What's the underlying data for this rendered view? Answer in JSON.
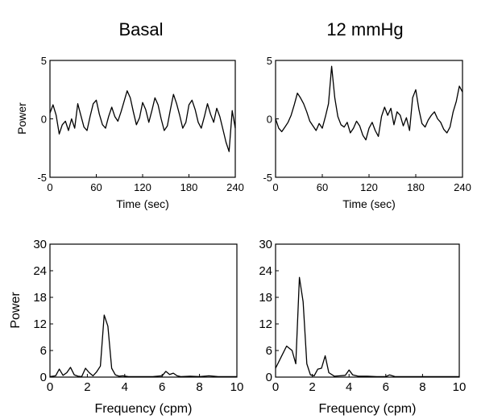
{
  "columns": [
    "Basal",
    "12 mmHg"
  ],
  "chart_data": [
    {
      "type": "line",
      "title": "Basal",
      "xlabel": "Time (sec)",
      "ylabel": "Power",
      "xlim": [
        0,
        240
      ],
      "ylim": [
        -5,
        5
      ],
      "xticks": [
        0,
        60,
        120,
        180,
        240
      ],
      "yticks": [
        -5,
        0,
        5
      ],
      "grid": false,
      "x": [
        0,
        4,
        8,
        12,
        16,
        20,
        24,
        28,
        32,
        36,
        40,
        44,
        48,
        52,
        56,
        60,
        64,
        68,
        72,
        76,
        80,
        84,
        88,
        92,
        96,
        100,
        104,
        108,
        112,
        116,
        120,
        124,
        128,
        132,
        136,
        140,
        144,
        148,
        152,
        156,
        160,
        164,
        168,
        172,
        176,
        180,
        184,
        188,
        192,
        196,
        200,
        204,
        208,
        212,
        216,
        220,
        224,
        228,
        232,
        236,
        240
      ],
      "y": [
        0.5,
        1.2,
        0.3,
        -1.3,
        -0.5,
        -0.2,
        -1.0,
        0.0,
        -0.8,
        1.3,
        0.3,
        -0.7,
        -1.0,
        0.2,
        1.3,
        1.6,
        0.4,
        -0.5,
        -0.8,
        0.2,
        1.0,
        0.2,
        -0.2,
        0.6,
        1.5,
        2.4,
        1.8,
        0.6,
        -0.5,
        0.1,
        1.4,
        0.8,
        -0.3,
        0.7,
        1.8,
        1.2,
        0.0,
        -1.0,
        -0.6,
        0.8,
        2.1,
        1.3,
        0.3,
        -0.8,
        -0.3,
        1.2,
        1.6,
        0.8,
        -0.3,
        -0.8,
        0.2,
        1.3,
        0.4,
        -0.3,
        0.9,
        0.2,
        -0.9,
        -2.0,
        -2.8,
        0.7,
        -0.8
      ]
    },
    {
      "type": "line",
      "title": "12 mmHg",
      "xlabel": "Time (sec)",
      "ylabel": "",
      "xlim": [
        0,
        240
      ],
      "ylim": [
        -5,
        5
      ],
      "xticks": [
        0,
        60,
        120,
        180,
        240
      ],
      "yticks": [
        -5,
        0,
        5
      ],
      "grid": false,
      "x": [
        0,
        4,
        8,
        12,
        16,
        20,
        24,
        28,
        32,
        36,
        40,
        44,
        48,
        52,
        56,
        60,
        64,
        68,
        72,
        76,
        80,
        84,
        88,
        92,
        96,
        100,
        104,
        108,
        112,
        116,
        120,
        124,
        128,
        132,
        136,
        140,
        144,
        148,
        152,
        156,
        160,
        164,
        168,
        172,
        176,
        180,
        184,
        188,
        192,
        196,
        200,
        204,
        208,
        212,
        216,
        220,
        224,
        228,
        232,
        236,
        240
      ],
      "y": [
        0.0,
        -0.8,
        -1.1,
        -0.7,
        -0.3,
        0.3,
        1.2,
        2.2,
        1.8,
        1.3,
        0.6,
        -0.2,
        -0.6,
        -1.0,
        -0.4,
        -0.8,
        0.2,
        1.3,
        4.5,
        1.8,
        0.2,
        -0.5,
        -0.7,
        -0.3,
        -1.2,
        -0.8,
        -0.2,
        -0.6,
        -1.4,
        -1.8,
        -0.8,
        -0.3,
        -1.0,
        -1.5,
        0.2,
        1.0,
        0.3,
        0.9,
        -0.5,
        0.6,
        0.3,
        -0.6,
        0.1,
        -1.0,
        1.8,
        2.5,
        0.8,
        -0.4,
        -0.7,
        -0.1,
        0.3,
        0.6,
        0.0,
        -0.3,
        -0.9,
        -1.2,
        -0.7,
        0.6,
        1.5,
        2.8,
        2.3
      ]
    },
    {
      "type": "line",
      "title": "",
      "xlabel": "Frequency (cpm)",
      "ylabel": "Power",
      "xlim": [
        0,
        10
      ],
      "ylim": [
        0,
        30
      ],
      "xticks": [
        0,
        2,
        4,
        6,
        8,
        10
      ],
      "yticks": [
        0,
        6,
        12,
        18,
        24,
        30
      ],
      "grid": false,
      "x": [
        0,
        0.3,
        0.5,
        0.7,
        0.9,
        1.1,
        1.3,
        1.5,
        1.7,
        1.9,
        2.1,
        2.3,
        2.5,
        2.7,
        2.9,
        3.1,
        3.3,
        3.5,
        3.7,
        3.9,
        4.2,
        4.6,
        5.0,
        5.5,
        6.0,
        6.2,
        6.4,
        6.6,
        6.8,
        7.0,
        7.5,
        8.0,
        8.5,
        9.0,
        9.5,
        10.0
      ],
      "y": [
        0.1,
        0.3,
        1.8,
        0.4,
        1.0,
        2.2,
        0.5,
        0.2,
        0.1,
        2.0,
        1.0,
        0.3,
        1.2,
        2.5,
        14.0,
        11.5,
        2.0,
        0.5,
        0.2,
        0.3,
        0.1,
        0.1,
        0.1,
        0.1,
        0.3,
        1.3,
        0.6,
        0.9,
        0.3,
        0.1,
        0.2,
        0.1,
        0.3,
        0.1,
        0.1,
        0.1
      ]
    },
    {
      "type": "line",
      "title": "",
      "xlabel": "Frequency (cpm)",
      "ylabel": "",
      "xlim": [
        0,
        10
      ],
      "ylim": [
        0,
        30
      ],
      "xticks": [
        0,
        2,
        4,
        6,
        8,
        10
      ],
      "yticks": [
        0,
        6,
        12,
        18,
        24,
        30
      ],
      "grid": false,
      "x": [
        0,
        0.3,
        0.6,
        0.9,
        1.1,
        1.3,
        1.5,
        1.7,
        1.9,
        2.1,
        2.3,
        2.5,
        2.7,
        2.9,
        3.2,
        3.5,
        3.8,
        4.0,
        4.2,
        4.5,
        5.0,
        5.5,
        6.0,
        6.2,
        6.5,
        7.0,
        7.5,
        8.0,
        9.0,
        10.0
      ],
      "y": [
        2.0,
        4.5,
        7.0,
        6.0,
        3.0,
        22.5,
        17.0,
        3.0,
        0.5,
        0.3,
        1.8,
        2.0,
        4.8,
        1.0,
        0.2,
        0.3,
        0.4,
        1.6,
        0.5,
        0.2,
        0.2,
        0.1,
        0.1,
        0.5,
        0.1,
        0.1,
        0.1,
        0.1,
        0.1,
        0.1
      ]
    }
  ]
}
